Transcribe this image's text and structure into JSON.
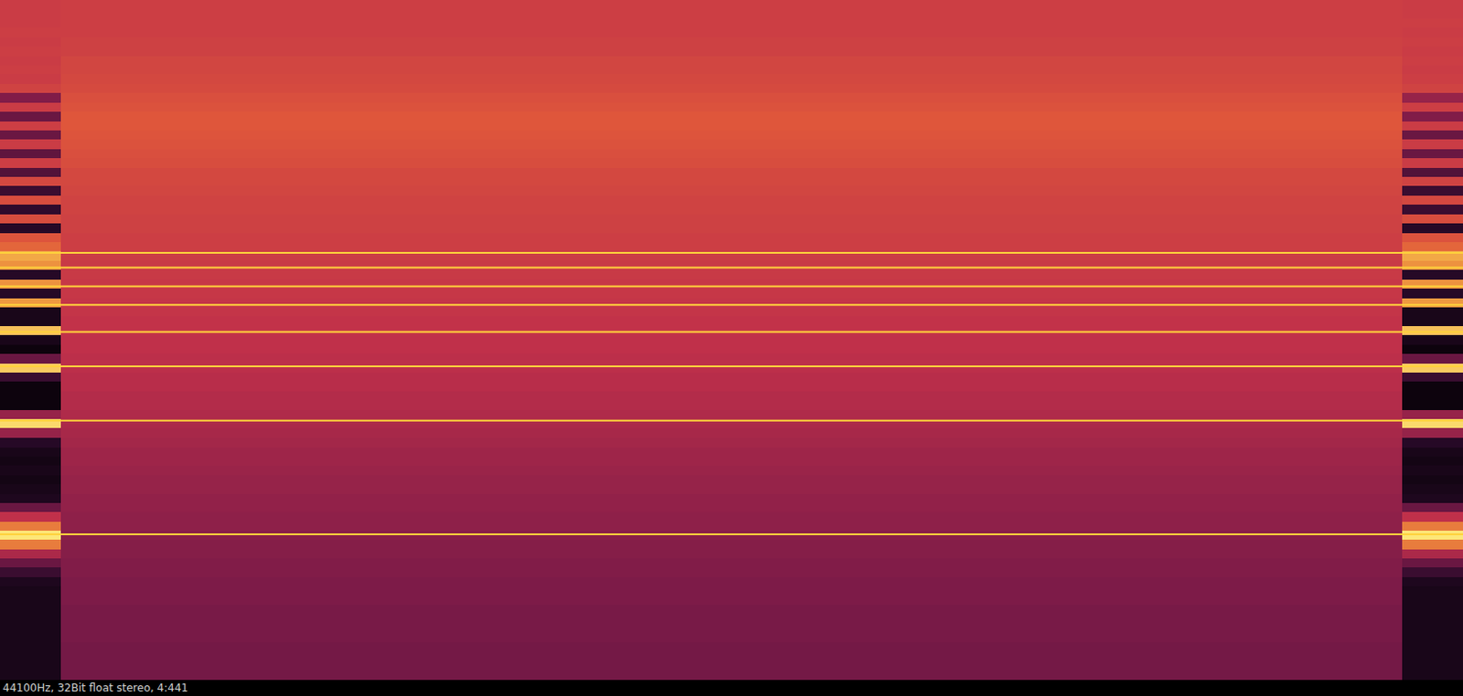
{
  "chart_data": {
    "type": "heatmap",
    "caption": "44100Hz, 32Bit float stereo, 4:441",
    "log": "y",
    "tick_labels": false,
    "xlim": [
      0,
      24
    ],
    "ylim": [
      20,
      22050
    ],
    "zlim": [
      0,
      1
    ],
    "x_bins": [
      0,
      1,
      23,
      24
    ],
    "y_bins": [
      22050,
      20032,
      18199,
      16534,
      15021,
      13647,
      12398,
      11264,
      10233,
      9297,
      8446,
      7673,
      6971,
      6333,
      5754,
      5227,
      4749,
      4314,
      3920,
      3561,
      3235,
      2939,
      2670,
      2426,
      2204,
      2002,
      1819,
      1652,
      1501,
      1364,
      1239,
      1126,
      1023,
      929,
      844,
      767,
      697,
      633,
      575,
      522,
      475,
      431,
      392,
      356,
      323,
      294,
      267,
      243,
      220,
      200,
      182,
      165,
      150,
      136,
      124,
      113,
      102,
      93,
      85,
      77,
      70,
      63.6,
      57.8,
      52.5,
      47.7,
      43.3,
      39.4,
      35.8,
      32.5,
      29.5,
      26.8,
      24.4,
      22.1,
      20
    ],
    "values": [
      [
        0.55,
        0.56,
        0.55
      ],
      [
        0.55,
        0.56,
        0.55
      ],
      [
        0.55,
        0.56,
        0.56
      ],
      [
        0.56,
        0.56,
        0.55
      ],
      [
        0.55,
        0.57,
        0.56
      ],
      [
        0.56,
        0.57,
        0.55
      ],
      [
        0.55,
        0.59,
        0.56
      ],
      [
        0.56,
        0.59,
        0.55
      ],
      [
        0.55,
        0.6,
        0.56
      ],
      [
        0.58,
        0.61,
        0.58
      ],
      [
        0.35,
        0.63,
        0.4
      ],
      [
        0.55,
        0.64,
        0.56
      ],
      [
        0.3,
        0.66,
        0.35
      ],
      [
        0.56,
        0.66,
        0.55
      ],
      [
        0.3,
        0.65,
        0.3
      ],
      [
        0.55,
        0.64,
        0.55
      ],
      [
        0.28,
        0.63,
        0.3
      ],
      [
        0.56,
        0.62,
        0.55
      ],
      [
        0.25,
        0.6,
        0.25
      ],
      [
        0.6,
        0.6,
        0.58
      ],
      [
        0.2,
        0.59,
        0.2
      ],
      [
        0.62,
        0.58,
        0.6
      ],
      [
        0.18,
        0.58,
        0.2
      ],
      [
        0.62,
        0.57,
        0.62
      ],
      [
        0.15,
        0.57,
        0.15
      ],
      [
        0.65,
        0.56,
        0.64
      ],
      [
        0.7,
        0.56,
        0.7
      ],
      [
        0.85,
        0.55,
        0.85
      ],
      [
        0.8,
        0.54,
        0.8
      ],
      [
        0.15,
        0.54,
        0.15
      ],
      [
        0.8,
        0.53,
        0.8
      ],
      [
        0.15,
        0.53,
        0.15
      ],
      [
        0.82,
        0.52,
        0.82
      ],
      [
        0.1,
        0.52,
        0.1
      ],
      [
        0.1,
        0.51,
        0.1
      ],
      [
        0.9,
        0.51,
        0.9
      ],
      [
        0.1,
        0.5,
        0.1
      ],
      [
        0.05,
        0.5,
        0.05
      ],
      [
        0.3,
        0.49,
        0.3
      ],
      [
        0.92,
        0.49,
        0.92
      ],
      [
        0.2,
        0.48,
        0.2
      ],
      [
        0.05,
        0.48,
        0.05
      ],
      [
        0.05,
        0.47,
        0.05
      ],
      [
        0.05,
        0.47,
        0.05
      ],
      [
        0.4,
        0.46,
        0.4
      ],
      [
        0.95,
        0.45,
        0.95
      ],
      [
        0.4,
        0.44,
        0.4
      ],
      [
        0.15,
        0.43,
        0.15
      ],
      [
        0.1,
        0.42,
        0.1
      ],
      [
        0.08,
        0.42,
        0.08
      ],
      [
        0.1,
        0.41,
        0.1
      ],
      [
        0.08,
        0.4,
        0.08
      ],
      [
        0.1,
        0.4,
        0.1
      ],
      [
        0.12,
        0.39,
        0.12
      ],
      [
        0.3,
        0.39,
        0.3
      ],
      [
        0.5,
        0.38,
        0.5
      ],
      [
        0.75,
        0.38,
        0.75
      ],
      [
        0.98,
        0.37,
        0.98
      ],
      [
        0.75,
        0.36,
        0.75
      ],
      [
        0.45,
        0.36,
        0.45
      ],
      [
        0.3,
        0.35,
        0.3
      ],
      [
        0.2,
        0.35,
        0.2
      ],
      [
        0.12,
        0.34,
        0.12
      ],
      [
        0.1,
        0.34,
        0.1
      ],
      [
        0.1,
        0.34,
        0.1
      ],
      [
        0.1,
        0.33,
        0.1
      ],
      [
        0.1,
        0.33,
        0.1
      ],
      [
        0.1,
        0.33,
        0.1
      ],
      [
        0.1,
        0.33,
        0.1
      ],
      [
        0.1,
        0.32,
        0.1
      ],
      [
        0.1,
        0.32,
        0.1
      ],
      [
        0.1,
        0.32,
        0.1
      ],
      [
        0.1,
        0.32,
        0.1
      ]
    ],
    "tones": {
      "values": [
        90,
        291,
        508,
        724,
        957,
        1160,
        1405,
        1637
      ],
      "color": "#ffd23c"
    }
  }
}
